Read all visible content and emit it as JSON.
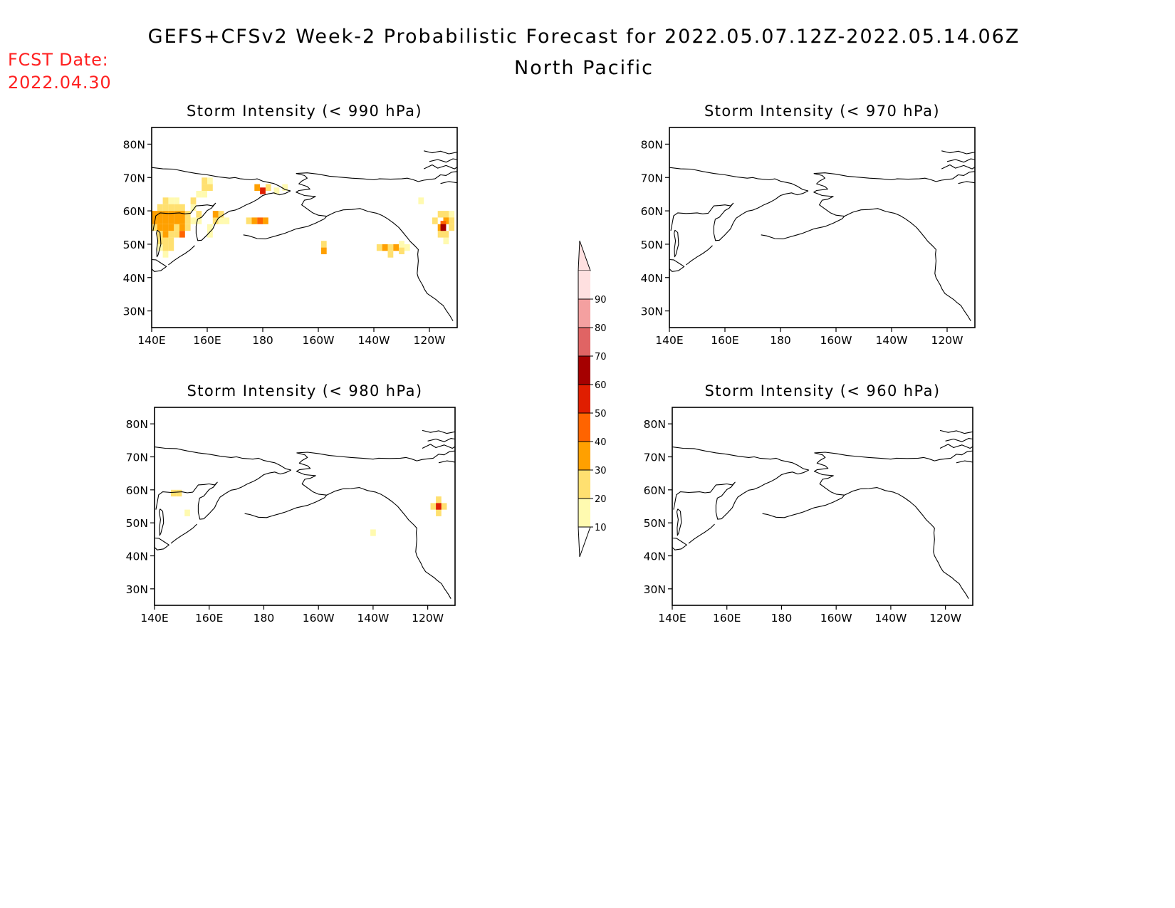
{
  "header": {
    "title": "GEFS+CFSv2 Week-2 Probabilistic Forecast for 2022.05.07.12Z-2022.05.14.06Z",
    "subtitle": "North Pacific",
    "fcst_label": "FCST Date:",
    "fcst_date": "2022.04.30",
    "fcst_color": "#ff2020"
  },
  "axes": {
    "lon_ticks": [
      {
        "lon": 140,
        "label": "140E"
      },
      {
        "lon": 160,
        "label": "160E"
      },
      {
        "lon": 180,
        "label": "180"
      },
      {
        "lon": 200,
        "label": "160W"
      },
      {
        "lon": 220,
        "label": "140W"
      },
      {
        "lon": 240,
        "label": "120W"
      }
    ],
    "lat_ticks": [
      {
        "lat": 30,
        "label": "30N"
      },
      {
        "lat": 40,
        "label": "40N"
      },
      {
        "lat": 50,
        "label": "50N"
      },
      {
        "lat": 60,
        "label": "60N"
      },
      {
        "lat": 70,
        "label": "70N"
      },
      {
        "lat": 80,
        "label": "80N"
      }
    ],
    "lon_range": [
      140,
      250
    ],
    "lat_range": [
      25,
      85
    ]
  },
  "colorbar": {
    "levels": [
      "10",
      "20",
      "30",
      "40",
      "50",
      "60",
      "70",
      "80",
      "90"
    ],
    "colors": [
      "#fffab0",
      "#ffe070",
      "#ffa000",
      "#ff6400",
      "#e01e00",
      "#a50000",
      "#e06464",
      "#f4a0a0",
      "#ffe0e0"
    ]
  },
  "panels": [
    {
      "id": "p990",
      "title": "Storm Intensity (< 990 hPa)",
      "cells": [
        {
          "lon": 141,
          "lat": 59,
          "v": 30
        },
        {
          "lon": 141,
          "lat": 57,
          "v": 30
        },
        {
          "lon": 141,
          "lat": 55,
          "v": 20
        },
        {
          "lon": 143,
          "lat": 61,
          "v": 20
        },
        {
          "lon": 143,
          "lat": 59,
          "v": 30
        },
        {
          "lon": 143,
          "lat": 57,
          "v": 30
        },
        {
          "lon": 143,
          "lat": 55,
          "v": 30
        },
        {
          "lon": 143,
          "lat": 53,
          "v": 20
        },
        {
          "lon": 143,
          "lat": 51,
          "v": 20
        },
        {
          "lon": 143,
          "lat": 49,
          "v": 10
        },
        {
          "lon": 145,
          "lat": 63,
          "v": 20
        },
        {
          "lon": 145,
          "lat": 61,
          "v": 20
        },
        {
          "lon": 145,
          "lat": 59,
          "v": 30
        },
        {
          "lon": 145,
          "lat": 57,
          "v": 30
        },
        {
          "lon": 145,
          "lat": 55,
          "v": 30
        },
        {
          "lon": 145,
          "lat": 53,
          "v": 30
        },
        {
          "lon": 145,
          "lat": 51,
          "v": 20
        },
        {
          "lon": 145,
          "lat": 49,
          "v": 20
        },
        {
          "lon": 145,
          "lat": 47,
          "v": 10
        },
        {
          "lon": 147,
          "lat": 63,
          "v": 10
        },
        {
          "lon": 147,
          "lat": 61,
          "v": 20
        },
        {
          "lon": 147,
          "lat": 59,
          "v": 30
        },
        {
          "lon": 147,
          "lat": 57,
          "v": 30
        },
        {
          "lon": 147,
          "lat": 55,
          "v": 30
        },
        {
          "lon": 147,
          "lat": 53,
          "v": 20
        },
        {
          "lon": 147,
          "lat": 51,
          "v": 20
        },
        {
          "lon": 147,
          "lat": 49,
          "v": 20
        },
        {
          "lon": 149,
          "lat": 63,
          "v": 10
        },
        {
          "lon": 149,
          "lat": 61,
          "v": 20
        },
        {
          "lon": 149,
          "lat": 59,
          "v": 30
        },
        {
          "lon": 149,
          "lat": 57,
          "v": 30
        },
        {
          "lon": 149,
          "lat": 55,
          "v": 20
        },
        {
          "lon": 149,
          "lat": 53,
          "v": 20
        },
        {
          "lon": 151,
          "lat": 61,
          "v": 20
        },
        {
          "lon": 151,
          "lat": 59,
          "v": 30
        },
        {
          "lon": 151,
          "lat": 57,
          "v": 30
        },
        {
          "lon": 151,
          "lat": 55,
          "v": 30
        },
        {
          "lon": 151,
          "lat": 53,
          "v": 40
        },
        {
          "lon": 153,
          "lat": 59,
          "v": 20
        },
        {
          "lon": 153,
          "lat": 57,
          "v": 20
        },
        {
          "lon": 153,
          "lat": 55,
          "v": 20
        },
        {
          "lon": 155,
          "lat": 63,
          "v": 20
        },
        {
          "lon": 155,
          "lat": 61,
          "v": 10
        },
        {
          "lon": 155,
          "lat": 57,
          "v": 10
        },
        {
          "lon": 157,
          "lat": 59,
          "v": 20
        },
        {
          "lon": 157,
          "lat": 57,
          "v": 10
        },
        {
          "lon": 157,
          "lat": 65,
          "v": 10
        },
        {
          "lon": 159,
          "lat": 69,
          "v": 20
        },
        {
          "lon": 159,
          "lat": 67,
          "v": 20
        },
        {
          "lon": 159,
          "lat": 65,
          "v": 10
        },
        {
          "lon": 161,
          "lat": 69,
          "v": 10
        },
        {
          "lon": 161,
          "lat": 67,
          "v": 20
        },
        {
          "lon": 161,
          "lat": 53,
          "v": 10
        },
        {
          "lon": 161,
          "lat": 55,
          "v": 10
        },
        {
          "lon": 163,
          "lat": 59,
          "v": 30
        },
        {
          "lon": 163,
          "lat": 57,
          "v": 20
        },
        {
          "lon": 165,
          "lat": 59,
          "v": 20
        },
        {
          "lon": 165,
          "lat": 57,
          "v": 10
        },
        {
          "lon": 167,
          "lat": 57,
          "v": 10
        },
        {
          "lon": 175,
          "lat": 57,
          "v": 20
        },
        {
          "lon": 177,
          "lat": 57,
          "v": 30
        },
        {
          "lon": 179,
          "lat": 57,
          "v": 40
        },
        {
          "lon": 181,
          "lat": 57,
          "v": 30
        },
        {
          "lon": 178,
          "lat": 67,
          "v": 30
        },
        {
          "lon": 180,
          "lat": 66,
          "v": 50
        },
        {
          "lon": 182,
          "lat": 67,
          "v": 20
        },
        {
          "lon": 185,
          "lat": 66,
          "v": 10
        },
        {
          "lon": 188,
          "lat": 67,
          "v": 10
        },
        {
          "lon": 202,
          "lat": 50,
          "v": 20
        },
        {
          "lon": 202,
          "lat": 48,
          "v": 30
        },
        {
          "lon": 222,
          "lat": 49,
          "v": 20
        },
        {
          "lon": 224,
          "lat": 49,
          "v": 30
        },
        {
          "lon": 226,
          "lat": 49,
          "v": 20
        },
        {
          "lon": 228,
          "lat": 49,
          "v": 30
        },
        {
          "lon": 226,
          "lat": 47,
          "v": 20
        },
        {
          "lon": 230,
          "lat": 48,
          "v": 20
        },
        {
          "lon": 230,
          "lat": 50,
          "v": 10
        },
        {
          "lon": 232,
          "lat": 49,
          "v": 10
        },
        {
          "lon": 237,
          "lat": 63,
          "v": 10
        },
        {
          "lon": 244,
          "lat": 59,
          "v": 20
        },
        {
          "lon": 246,
          "lat": 59,
          "v": 20
        },
        {
          "lon": 248,
          "lat": 59,
          "v": 10
        },
        {
          "lon": 246,
          "lat": 57,
          "v": 30
        },
        {
          "lon": 242,
          "lat": 57,
          "v": 20
        },
        {
          "lon": 248,
          "lat": 57,
          "v": 20
        },
        {
          "lon": 244,
          "lat": 55,
          "v": 30
        },
        {
          "lon": 248,
          "lat": 55,
          "v": 20
        },
        {
          "lon": 246,
          "lat": 53,
          "v": 20
        },
        {
          "lon": 244,
          "lat": 53,
          "v": 20
        },
        {
          "lon": 246,
          "lat": 51,
          "v": 10
        },
        {
          "lon": 245,
          "lat": 56,
          "v": 40
        },
        {
          "lon": 245,
          "lat": 55,
          "v": 60
        }
      ]
    },
    {
      "id": "p970",
      "title": "Storm Intensity (< 970 hPa)",
      "cells": []
    },
    {
      "id": "p980",
      "title": "Storm Intensity (< 980 hPa)",
      "cells": [
        {
          "lon": 147,
          "lat": 59,
          "v": 20
        },
        {
          "lon": 149,
          "lat": 59,
          "v": 20
        },
        {
          "lon": 152,
          "lat": 53,
          "v": 10
        },
        {
          "lon": 220,
          "lat": 47,
          "v": 10
        },
        {
          "lon": 244,
          "lat": 57,
          "v": 20
        },
        {
          "lon": 246,
          "lat": 55,
          "v": 20
        },
        {
          "lon": 244,
          "lat": 53,
          "v": 20
        },
        {
          "lon": 242,
          "lat": 55,
          "v": 20
        },
        {
          "lon": 244,
          "lat": 55,
          "v": 50
        }
      ]
    },
    {
      "id": "p960",
      "title": "Storm Intensity (< 960 hPa)",
      "cells": []
    }
  ]
}
